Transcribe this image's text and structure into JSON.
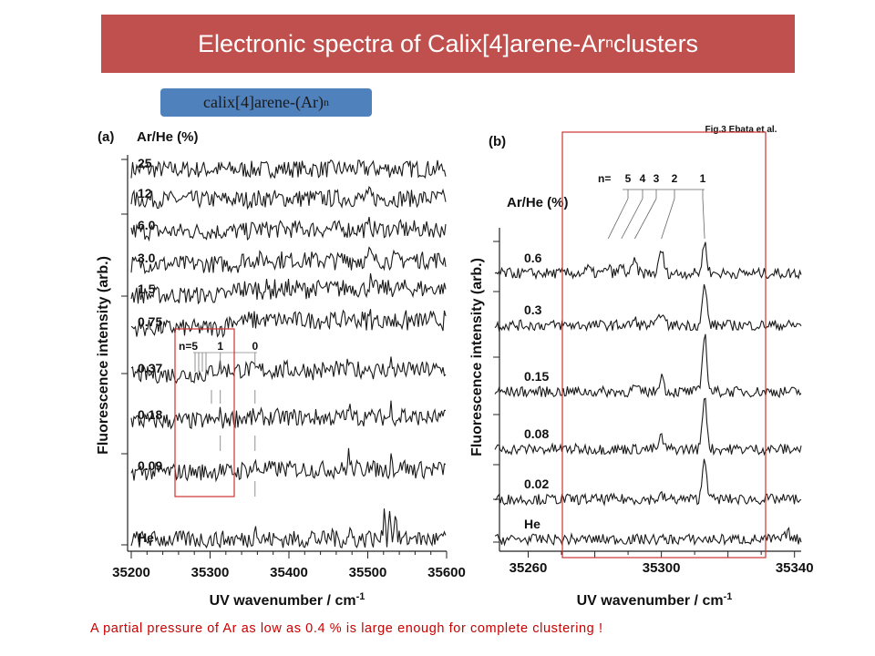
{
  "title": {
    "main": "Electronic spectra of Calix[4]arene-Ar",
    "sub": "n",
    "suffix": " clusters"
  },
  "species_label": {
    "main": "calix[4]arene-(Ar)",
    "sub": "n"
  },
  "footnote": "A partial pressure of Ar as low as 0.4 % is large enough for complete clustering !",
  "colors": {
    "title_bg": "#c0504d",
    "label_bg": "#4f81bd",
    "highlight_box": "#cc3333",
    "footnote": "#cc0000"
  },
  "chart_data": [
    {
      "type": "line",
      "panel_label": "(a)",
      "legend_header": "Ar/He (%)",
      "xlabel": "UV wavenumber / cm-1",
      "ylabel": "Fluorescence intensity (arb.)",
      "xlim": [
        35200,
        35600
      ],
      "x_ticks": [
        "35200",
        "35300",
        "35400",
        "35500",
        "35600"
      ],
      "cluster_marks": {
        "labels": [
          "n=5",
          "1",
          "0"
        ],
        "n1_position": 35313,
        "n0_position": 35357
      },
      "series": [
        {
          "name": "25",
          "peaks": [
            {
              "x": 35503,
              "h": 0.5
            }
          ],
          "band_onset": 35370,
          "band_level": 0.1
        },
        {
          "name": "12",
          "peaks": [
            {
              "x": 35503,
              "h": 1.2
            }
          ],
          "band_onset": 35360,
          "band_level": 0.2
        },
        {
          "name": "6.0",
          "peaks": [
            {
              "x": 35503,
              "h": 1.6
            }
          ],
          "band_onset": 35350,
          "band_level": 0.4
        },
        {
          "name": "3.0",
          "peaks": [
            {
              "x": 35503,
              "h": 1.8
            },
            {
              "x": 35475,
              "h": 0.6
            }
          ],
          "band_onset": 35340,
          "band_level": 0.8
        },
        {
          "name": "1.5",
          "peaks": [
            {
              "x": 35503,
              "h": 1.6
            },
            {
              "x": 35478,
              "h": 0.8
            }
          ],
          "band_onset": 35330,
          "band_level": 1.2
        },
        {
          "name": "0.75",
          "peaks": [
            {
              "x": 35478,
              "h": 1.0
            },
            {
              "x": 35503,
              "h": 1.2
            }
          ],
          "band_onset": 35320,
          "band_level": 1.4
        },
        {
          "name": "0.37",
          "peaks": [
            {
              "x": 35313,
              "h": 0.7
            },
            {
              "x": 35476,
              "h": 1.8
            },
            {
              "x": 35500,
              "h": 1.5
            },
            {
              "x": 35530,
              "h": 1.6
            }
          ],
          "band_onset": 35300,
          "band_level": 0.8
        },
        {
          "name": "0.18",
          "peaks": [
            {
              "x": 35305,
              "h": 0.5
            },
            {
              "x": 35313,
              "h": 1.2
            },
            {
              "x": 35476,
              "h": 2.6
            },
            {
              "x": 35500,
              "h": 2.0
            },
            {
              "x": 35530,
              "h": 2.4
            },
            {
              "x": 35545,
              "h": 1.8
            }
          ],
          "band_onset": 35320,
          "band_level": 0.6
        },
        {
          "name": "0.09",
          "peaks": [
            {
              "x": 35313,
              "h": 1.5
            },
            {
              "x": 35357,
              "h": 0.8
            },
            {
              "x": 35476,
              "h": 3.0
            },
            {
              "x": 35500,
              "h": 2.6
            },
            {
              "x": 35530,
              "h": 2.8
            },
            {
              "x": 35545,
              "h": 2.2
            }
          ],
          "band_onset": 35340,
          "band_level": 0.5
        },
        {
          "name": "He",
          "peaks": [
            {
              "x": 35357,
              "h": 4.0
            },
            {
              "x": 35430,
              "h": 1.2
            },
            {
              "x": 35455,
              "h": 1.8
            },
            {
              "x": 35478,
              "h": 2.2
            },
            {
              "x": 35500,
              "h": 1.8
            },
            {
              "x": 35521,
              "h": 7.0
            },
            {
              "x": 35528,
              "h": 6.6
            },
            {
              "x": 35535,
              "h": 5.8
            },
            {
              "x": 35560,
              "h": 1.8
            }
          ],
          "band_onset": 35600,
          "band_level": 0
        }
      ]
    },
    {
      "type": "line",
      "panel_label": "(b)",
      "figure_credit": "Fig.3 Ebata et al.",
      "legend_header": "Ar/He (%)",
      "xlabel": "UV wavenumber / cm-1",
      "ylabel": "Fluorescence intensity (arb.)",
      "xlim": [
        35250,
        35342
      ],
      "x_ticks": [
        "35260",
        "35300",
        "35340"
      ],
      "cluster_marks": {
        "prefix": "n=",
        "labels": [
          "5",
          "4",
          "3",
          "2",
          "1"
        ],
        "positions": [
          35284,
          35288,
          35292,
          35300,
          35313
        ]
      },
      "series": [
        {
          "name": "0.6",
          "peaks": [
            {
              "x": 35313,
              "h": 2.6
            },
            {
              "x": 35300,
              "h": 2.0
            },
            {
              "x": 35292,
              "h": 1.0
            },
            {
              "x": 35288,
              "h": 0.6
            },
            {
              "x": 35284,
              "h": 0.5
            },
            {
              "x": 35278,
              "h": 0.4
            }
          ]
        },
        {
          "name": "0.3",
          "peaks": [
            {
              "x": 35313,
              "h": 3.4
            },
            {
              "x": 35300,
              "h": 1.2
            },
            {
              "x": 35292,
              "h": 0.4
            }
          ]
        },
        {
          "name": "0.15",
          "peaks": [
            {
              "x": 35313,
              "h": 5.0
            },
            {
              "x": 35300,
              "h": 1.4
            },
            {
              "x": 35292,
              "h": 0.4
            }
          ]
        },
        {
          "name": "0.08",
          "peaks": [
            {
              "x": 35313,
              "h": 4.6
            },
            {
              "x": 35300,
              "h": 1.0
            }
          ]
        },
        {
          "name": "0.02",
          "peaks": [
            {
              "x": 35313,
              "h": 3.6
            },
            {
              "x": 35300,
              "h": 0.3
            }
          ]
        },
        {
          "name": "He",
          "peaks": [
            {
              "x": 35338,
              "h": 0.6
            }
          ]
        }
      ]
    }
  ]
}
